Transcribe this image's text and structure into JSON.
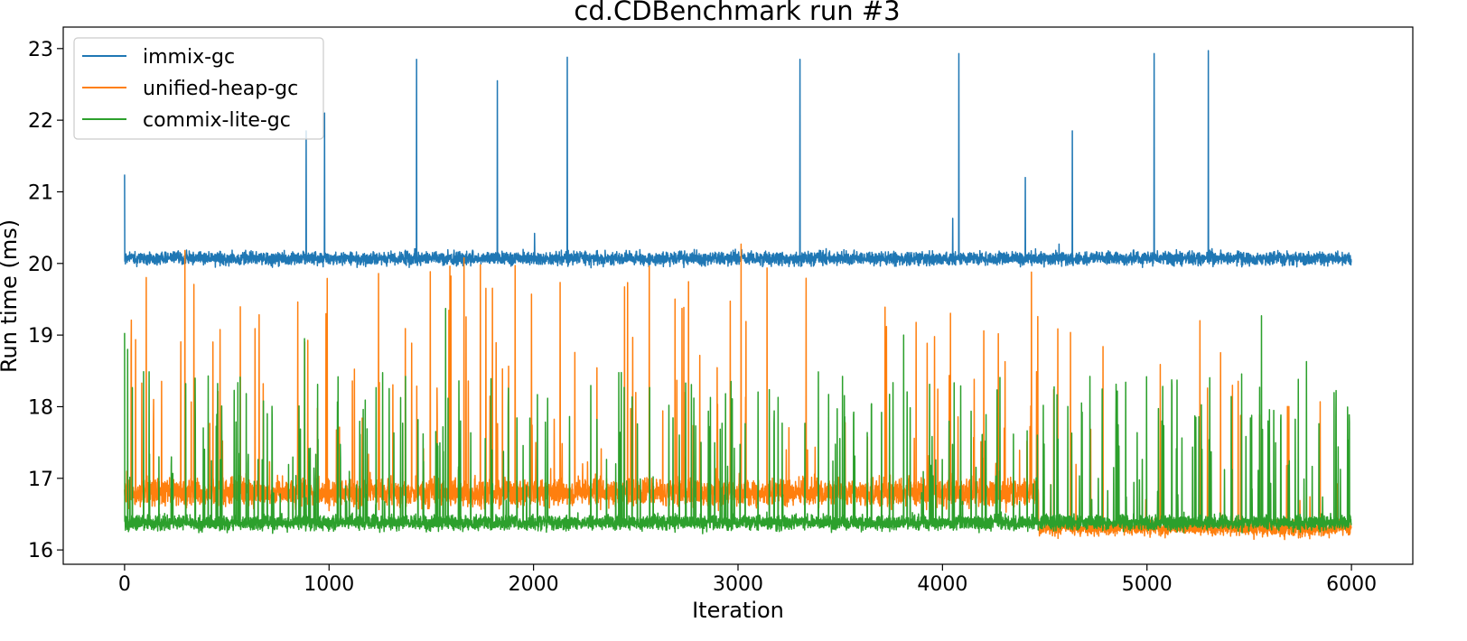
{
  "chart_data": {
    "type": "line",
    "title": "cd.CDBenchmark run #3",
    "xlabel": "Iteration",
    "ylabel": "Run time (ms)",
    "xlim": [
      -300,
      6300
    ],
    "ylim": [
      15.8,
      23.3
    ],
    "xticks": [
      0,
      1000,
      2000,
      3000,
      4000,
      5000,
      6000
    ],
    "yticks": [
      16,
      17,
      18,
      19,
      20,
      21,
      22,
      23
    ],
    "grid": false,
    "legend_position": "top-left",
    "iterations": 6000,
    "series": [
      {
        "name": "immix-gc",
        "color": "#1f77b4",
        "baseline": 20.07,
        "noise": 0.09,
        "spikes": [
          [
            0,
            21.24
          ],
          [
            888,
            21.85
          ],
          [
            978,
            22.1
          ],
          [
            1428,
            22.85
          ],
          [
            1823,
            22.55
          ],
          [
            2005,
            20.42
          ],
          [
            2165,
            22.88
          ],
          [
            3303,
            22.85
          ],
          [
            4050,
            20.63
          ],
          [
            4080,
            22.93
          ],
          [
            4405,
            21.2
          ],
          [
            4570,
            20.27
          ],
          [
            4635,
            21.85
          ],
          [
            5035,
            22.93
          ],
          [
            5300,
            22.97
          ]
        ]
      },
      {
        "name": "unified-heap-gc",
        "color": "#ff7f0e",
        "segments": [
          {
            "from": 0,
            "to": 4470,
            "baseline": 16.8,
            "noise": 0.18,
            "spike_rate": 0.03,
            "spike_max": 20.0
          },
          {
            "from": 4470,
            "to": 6000,
            "baseline": 16.3,
            "noise": 0.1,
            "spike_rate": 0.015,
            "spike_max": 19.4
          }
        ],
        "spikes": [
          [
            295,
            20.18
          ],
          [
            1660,
            20.08
          ],
          [
            1910,
            19.97
          ],
          [
            3015,
            20.27
          ],
          [
            4435,
            19.88
          ]
        ]
      },
      {
        "name": "commix-lite-gc",
        "color": "#2ca02c",
        "baseline": 16.38,
        "noise": 0.1,
        "spike_rate": 0.05,
        "spike_max": 18.5,
        "spikes": [
          [
            0,
            19.03
          ],
          [
            15,
            18.8
          ],
          [
            880,
            18.95
          ],
          [
            1570,
            19.37
          ],
          [
            3810,
            19.0
          ],
          [
            5560,
            19.27
          ],
          [
            5780,
            18.63
          ],
          [
            5990,
            17.78
          ]
        ]
      }
    ]
  }
}
